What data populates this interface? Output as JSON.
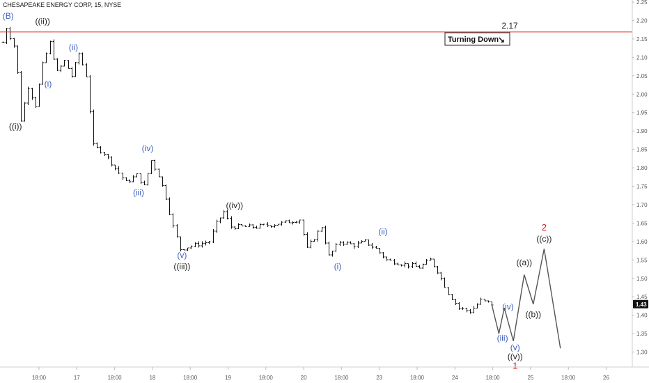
{
  "header": {
    "symbol_line": "CHESAPEAKE ENERGY CORP, 15, NYSE"
  },
  "colors": {
    "price_bar": "#111111",
    "resistance": "#e03030",
    "wave_blue": "#3b5fc0",
    "wave_black": "#222222",
    "wave_red": "#d42020",
    "projection": "#555555",
    "axis_text": "#555555",
    "last_price_bg": "#111111"
  },
  "chart_data": {
    "type": "line",
    "title": "CHESAPEAKE ENERGY CORP, 15, NYSE",
    "y_axis": {
      "position": "right",
      "ylim": [
        1.25,
        2.25
      ],
      "ticks": [
        "2.25",
        "2.20",
        "2.15",
        "2.10",
        "2.05",
        "2.00",
        "1.95",
        "1.90",
        "1.85",
        "1.80",
        "1.75",
        "1.70",
        "1.65",
        "1.60",
        "1.55",
        "1.50",
        "1.45",
        "1.40",
        "1.35",
        "1.30"
      ]
    },
    "x_axis": {
      "ticks": [
        "18:00",
        "17",
        "18:00",
        "18",
        "18:00",
        "19",
        "18:00",
        "20",
        "18:00",
        "23",
        "18:00",
        "24",
        "18:00",
        "25",
        "18:00",
        "26"
      ]
    },
    "last_price": "1.43",
    "resistance": {
      "value": 2.17,
      "label": "2.17"
    },
    "annotation": {
      "text": "Turning Down",
      "arrow": "↘"
    },
    "price_path": [
      [
        0.0,
        2.14
      ],
      [
        1.0,
        2.18
      ],
      [
        3.5,
        2.12
      ],
      [
        5.0,
        1.93
      ],
      [
        7.0,
        2.02
      ],
      [
        9.0,
        1.97
      ],
      [
        11.0,
        2.08
      ],
      [
        13.0,
        2.14
      ],
      [
        15.0,
        2.06
      ],
      [
        17.0,
        2.09
      ],
      [
        19.0,
        2.05
      ],
      [
        21.0,
        2.11
      ],
      [
        23.0,
        2.05
      ],
      [
        25.0,
        1.86
      ],
      [
        28.0,
        1.84
      ],
      [
        31.0,
        1.8
      ],
      [
        34.0,
        1.76
      ],
      [
        37.0,
        1.78
      ],
      [
        39.0,
        1.75
      ],
      [
        41.0,
        1.82
      ],
      [
        43.0,
        1.78
      ],
      [
        45.0,
        1.72
      ],
      [
        47.0,
        1.64
      ],
      [
        49.0,
        1.58
      ],
      [
        53.0,
        1.59
      ],
      [
        57.0,
        1.6
      ],
      [
        59.0,
        1.65
      ],
      [
        61.0,
        1.68
      ],
      [
        63.0,
        1.64
      ],
      [
        70.0,
        1.64
      ],
      [
        77.0,
        1.65
      ],
      [
        82.0,
        1.66
      ],
      [
        84.0,
        1.58
      ],
      [
        86.0,
        1.61
      ],
      [
        88.0,
        1.64
      ],
      [
        90.0,
        1.56
      ],
      [
        93.0,
        1.6
      ],
      [
        97.0,
        1.59
      ],
      [
        100.0,
        1.6
      ],
      [
        103.0,
        1.58
      ],
      [
        106.0,
        1.55
      ],
      [
        110.0,
        1.54
      ],
      [
        115.0,
        1.53
      ],
      [
        118.0,
        1.55
      ],
      [
        120.0,
        1.52
      ],
      [
        123.0,
        1.46
      ],
      [
        126.0,
        1.42
      ],
      [
        129.0,
        1.41
      ],
      [
        132.0,
        1.44
      ],
      [
        135.0,
        1.43
      ]
    ],
    "projection": {
      "name": "projected path",
      "points": [
        [
          135.0,
          1.43
        ],
        [
          137.0,
          1.35
        ],
        [
          138.5,
          1.42
        ],
        [
          141.0,
          1.33
        ],
        [
          144.0,
          1.51
        ],
        [
          146.5,
          1.43
        ],
        [
          149.5,
          1.58
        ],
        [
          154.0,
          1.31
        ]
      ]
    },
    "wave_labels": [
      {
        "text": "(B)",
        "x": 1.5,
        "y": 2.205,
        "color": "blue"
      },
      {
        "text": "((ii))",
        "x": 11.0,
        "y": 2.19,
        "color": "black"
      },
      {
        "text": "(ii)",
        "x": 19.5,
        "y": 2.12,
        "color": "blue"
      },
      {
        "text": "(i)",
        "x": 12.5,
        "y": 2.02,
        "color": "blue"
      },
      {
        "text": "((i))",
        "x": 3.5,
        "y": 1.905,
        "color": "black"
      },
      {
        "text": "(iv)",
        "x": 40.0,
        "y": 1.845,
        "color": "blue"
      },
      {
        "text": "(iii)",
        "x": 37.5,
        "y": 1.725,
        "color": "blue"
      },
      {
        "text": "((iv))",
        "x": 64.0,
        "y": 1.69,
        "color": "black"
      },
      {
        "text": "(v)",
        "x": 49.5,
        "y": 1.555,
        "color": "blue"
      },
      {
        "text": "((iii))",
        "x": 49.5,
        "y": 1.525,
        "color": "black"
      },
      {
        "text": "(ii)",
        "x": 105.0,
        "y": 1.62,
        "color": "blue"
      },
      {
        "text": "(i)",
        "x": 92.5,
        "y": 1.525,
        "color": "blue"
      },
      {
        "text": "(iv)",
        "x": 139.5,
        "y": 1.415,
        "color": "blue"
      },
      {
        "text": "(iii)",
        "x": 138.0,
        "y": 1.33,
        "color": "blue"
      },
      {
        "text": "(v)",
        "x": 141.5,
        "y": 1.305,
        "color": "blue"
      },
      {
        "text": "((v))",
        "x": 141.5,
        "y": 1.28,
        "color": "black"
      },
      {
        "text": "1",
        "x": 141.5,
        "y": 1.255,
        "color": "red"
      },
      {
        "text": "((a))",
        "x": 144.0,
        "y": 1.535,
        "color": "black"
      },
      {
        "text": "((b))",
        "x": 146.5,
        "y": 1.395,
        "color": "black"
      },
      {
        "text": "((c))",
        "x": 149.5,
        "y": 1.6,
        "color": "black"
      },
      {
        "text": "2",
        "x": 149.5,
        "y": 1.63,
        "color": "red"
      }
    ]
  }
}
